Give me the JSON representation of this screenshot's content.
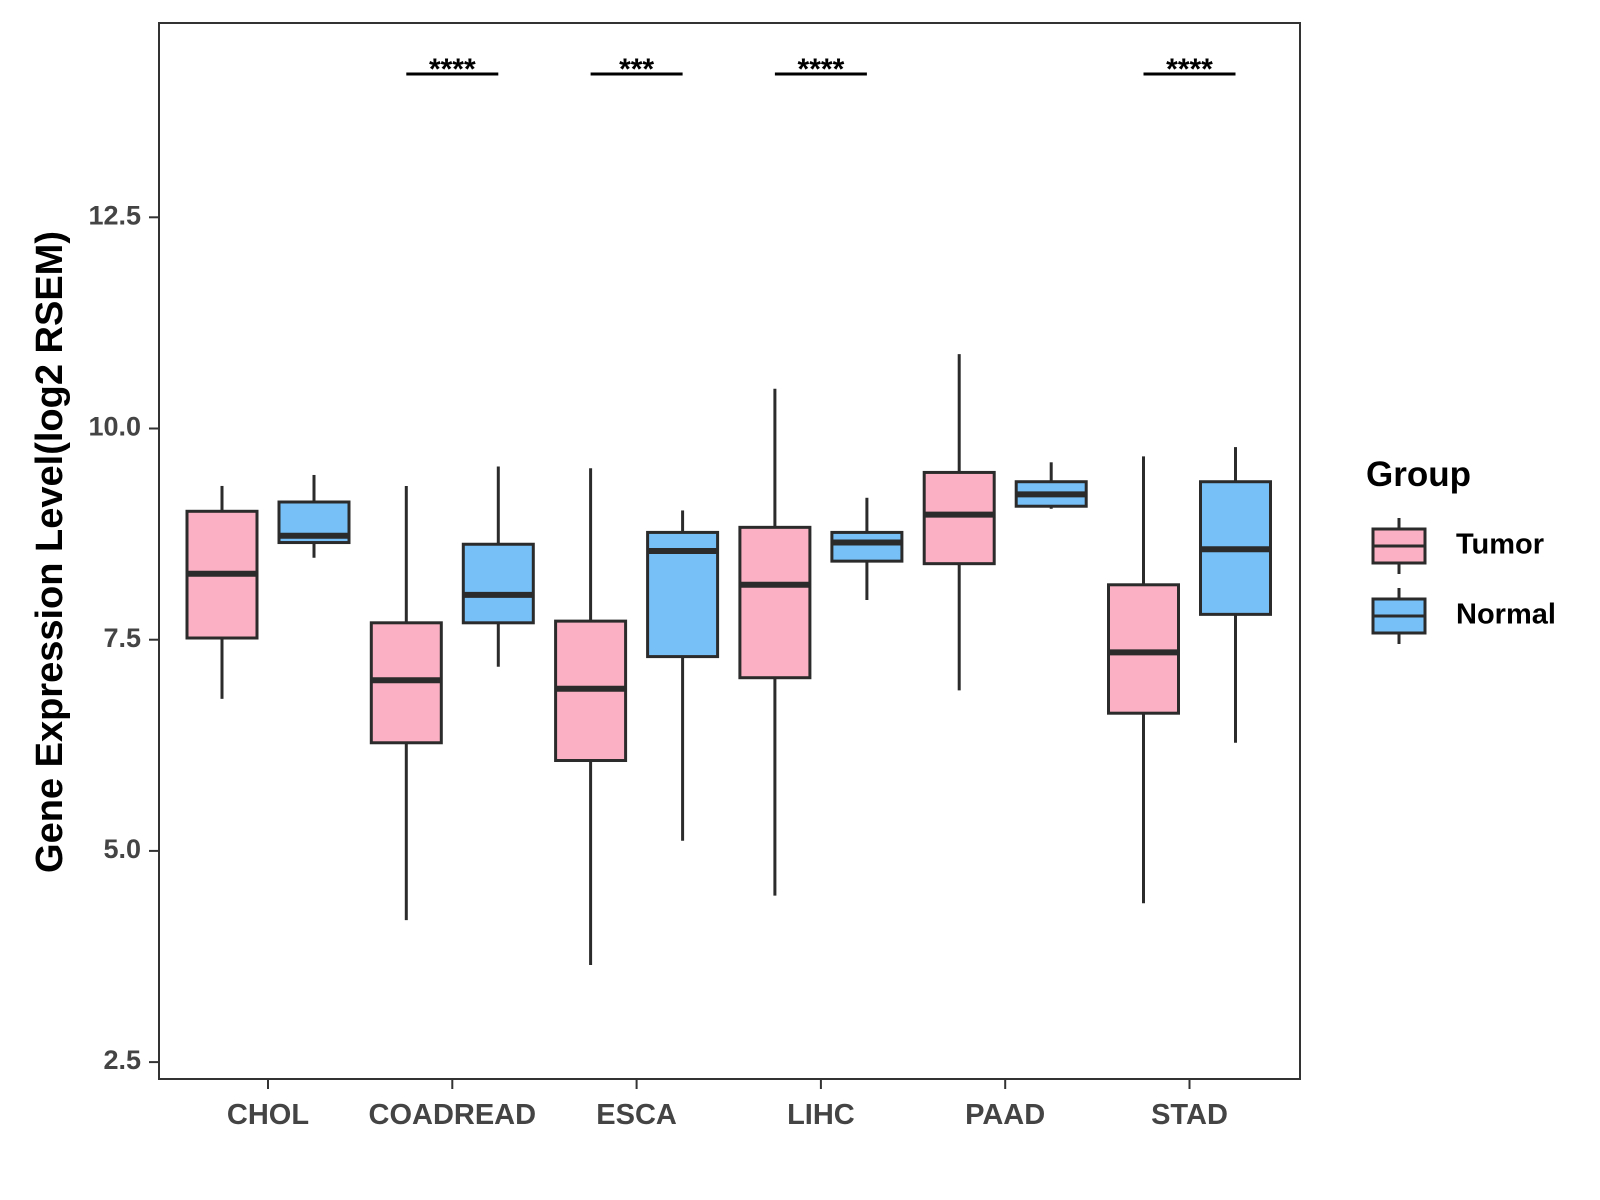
{
  "chart_data": {
    "type": "boxplot",
    "title": "",
    "xlabel": "",
    "ylabel": "Gene Expression Level(log2 RSEM)",
    "ylim": [
      2.3,
      14.8
    ],
    "yticks": [
      2.5,
      5.0,
      7.5,
      10.0,
      12.5
    ],
    "ytick_labels": [
      "2.5",
      "5.0",
      "7.5",
      "10.0",
      "12.5"
    ],
    "categories": [
      "CHOL",
      "COADREAD",
      "ESCA",
      "LIHC",
      "PAAD",
      "STAD"
    ],
    "legend": {
      "title": "Group",
      "position": "right",
      "entries": [
        {
          "name": "Tumor",
          "color": "#fbb1c3"
        },
        {
          "name": "Normal",
          "color": "#76c0f7"
        }
      ]
    },
    "series": [
      {
        "name": "Tumor",
        "color": "#fbb1c3",
        "boxes": [
          {
            "category": "CHOL",
            "min": 6.8,
            "q1": 7.52,
            "median": 8.28,
            "q3": 9.02,
            "max": 9.32
          },
          {
            "category": "COADREAD",
            "min": 4.18,
            "q1": 6.28,
            "median": 7.02,
            "q3": 7.7,
            "max": 9.32
          },
          {
            "category": "ESCA",
            "min": 3.65,
            "q1": 6.07,
            "median": 6.92,
            "q3": 7.72,
            "max": 9.53
          },
          {
            "category": "LIHC",
            "min": 4.47,
            "q1": 7.05,
            "median": 8.15,
            "q3": 8.83,
            "max": 10.47
          },
          {
            "category": "PAAD",
            "min": 6.9,
            "q1": 8.4,
            "median": 8.98,
            "q3": 9.48,
            "max": 10.88
          },
          {
            "category": "STAD",
            "min": 4.38,
            "q1": 6.63,
            "median": 7.35,
            "q3": 8.15,
            "max": 9.67
          }
        ]
      },
      {
        "name": "Normal",
        "color": "#76c0f7",
        "boxes": [
          {
            "category": "CHOL",
            "min": 8.47,
            "q1": 8.65,
            "median": 8.73,
            "q3": 9.13,
            "max": 9.45
          },
          {
            "category": "COADREAD",
            "min": 7.18,
            "q1": 7.7,
            "median": 8.03,
            "q3": 8.63,
            "max": 9.55
          },
          {
            "category": "ESCA",
            "min": 5.12,
            "q1": 7.3,
            "median": 8.55,
            "q3": 8.77,
            "max": 9.03
          },
          {
            "category": "LIHC",
            "min": 7.97,
            "q1": 8.43,
            "median": 8.65,
            "q3": 8.77,
            "max": 9.18
          },
          {
            "category": "PAAD",
            "min": 9.05,
            "q1": 9.08,
            "median": 9.22,
            "q3": 9.37,
            "max": 9.6
          },
          {
            "category": "STAD",
            "min": 6.28,
            "q1": 7.8,
            "median": 8.57,
            "q3": 9.37,
            "max": 9.78
          }
        ]
      }
    ],
    "significance": [
      {
        "category": "COADREAD",
        "label": "****"
      },
      {
        "category": "ESCA",
        "label": "***"
      },
      {
        "category": "LIHC",
        "label": "****"
      },
      {
        "category": "STAD",
        "label": "****"
      }
    ],
    "grid": false
  }
}
